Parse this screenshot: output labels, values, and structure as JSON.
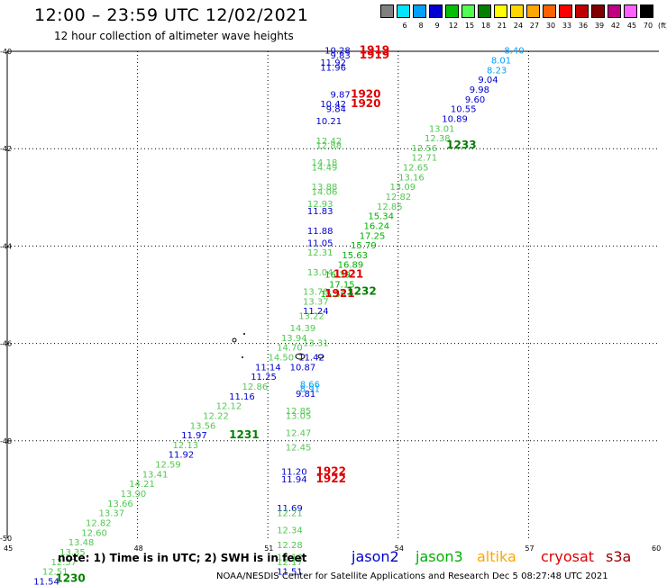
{
  "header": {
    "title": "12:00 – 23:59 UTC 12/02/2021",
    "subtitle": "12 hour collection of altimeter wave heights"
  },
  "colorbar": {
    "units": "(ft)",
    "bins": [
      {
        "label": "3",
        "color": "#808080"
      },
      {
        "label": "6",
        "color": "#00e5ff"
      },
      {
        "label": "8",
        "color": "#00a0ff"
      },
      {
        "label": "9",
        "color": "#0000d0"
      },
      {
        "label": "12",
        "color": "#00c000"
      },
      {
        "label": "15",
        "color": "#50ff50"
      },
      {
        "label": "18",
        "color": "#008000"
      },
      {
        "label": "21",
        "color": "#ffff00"
      },
      {
        "label": "24",
        "color": "#ffd700"
      },
      {
        "label": "27",
        "color": "#ffa500"
      },
      {
        "label": "30",
        "color": "#ff6000"
      },
      {
        "label": "33",
        "color": "#ff0000"
      },
      {
        "label": "36",
        "color": "#c00000"
      },
      {
        "label": "39",
        "color": "#800000"
      },
      {
        "label": "42",
        "color": "#c00080"
      },
      {
        "label": "45",
        "color": "#ff60ff"
      },
      {
        "label": "70",
        "color": "#000000"
      }
    ]
  },
  "axes": {
    "lat_labels": [
      "-40",
      "-42",
      "-44",
      "-46",
      "-48",
      "-50"
    ],
    "lon_labels": [
      "45",
      "48",
      "51",
      "54",
      "57",
      "60"
    ],
    "lon_range": [
      45,
      60
    ],
    "lat_range": [
      -50,
      -40
    ]
  },
  "observations": [
    {
      "text": "8.40",
      "lon": 56.9,
      "lat": -40.05,
      "c": "#00a0ff"
    },
    {
      "text": "8.01",
      "lon": 56.6,
      "lat": -40.25,
      "c": "#00a0ff"
    },
    {
      "text": "8.23",
      "lon": 56.5,
      "lat": -40.45,
      "c": "#00a0ff"
    },
    {
      "text": "9.04",
      "lon": 56.3,
      "lat": -40.65,
      "c": "#0000d0"
    },
    {
      "text": "9.98",
      "lon": 56.1,
      "lat": -40.85,
      "c": "#0000d0"
    },
    {
      "text": "9.60",
      "lon": 56.0,
      "lat": -41.05,
      "c": "#0000d0"
    },
    {
      "text": "10.55",
      "lon": 55.8,
      "lat": -41.25,
      "c": "#0000d0"
    },
    {
      "text": "10.89",
      "lon": 55.6,
      "lat": -41.45,
      "c": "#0000d0"
    },
    {
      "text": "13.01",
      "lon": 55.3,
      "lat": -41.65,
      "c": "#50c850"
    },
    {
      "text": "12.38",
      "lon": 55.2,
      "lat": -41.85,
      "c": "#50c850"
    },
    {
      "text": "12.56",
      "lon": 54.9,
      "lat": -42.05,
      "c": "#50c850"
    },
    {
      "text": "12.71",
      "lon": 54.9,
      "lat": -42.25,
      "c": "#50c850"
    },
    {
      "text": "12.65",
      "lon": 54.7,
      "lat": -42.45,
      "c": "#50c850"
    },
    {
      "text": "13.16",
      "lon": 54.6,
      "lat": -42.65,
      "c": "#50c850"
    },
    {
      "text": "13.09",
      "lon": 54.4,
      "lat": -42.85,
      "c": "#50c850"
    },
    {
      "text": "12.82",
      "lon": 54.3,
      "lat": -43.05,
      "c": "#50c850"
    },
    {
      "text": "12.85",
      "lon": 54.1,
      "lat": -43.25,
      "c": "#50c850"
    },
    {
      "text": "15.34",
      "lon": 53.9,
      "lat": -43.45,
      "c": "#00b000"
    },
    {
      "text": "16.24",
      "lon": 53.8,
      "lat": -43.65,
      "c": "#00b000"
    },
    {
      "text": "17.25",
      "lon": 53.7,
      "lat": -43.85,
      "c": "#00b000"
    },
    {
      "text": "15.79",
      "lon": 53.5,
      "lat": -44.05,
      "c": "#00b000"
    },
    {
      "text": "15.63",
      "lon": 53.3,
      "lat": -44.25,
      "c": "#00b000"
    },
    {
      "text": "16.89",
      "lon": 53.2,
      "lat": -44.45,
      "c": "#00b000"
    },
    {
      "text": "16.39",
      "lon": 52.9,
      "lat": -44.65,
      "c": "#00b000"
    },
    {
      "text": "17.15",
      "lon": 53.0,
      "lat": -44.85,
      "c": "#00b000"
    },
    {
      "text": "15.56",
      "lon": 52.8,
      "lat": -45.05,
      "c": "#00b000"
    },
    {
      "text": "13.04",
      "lon": 52.5,
      "lat": -44.6,
      "c": "#50c850"
    },
    {
      "text": "13.78",
      "lon": 52.4,
      "lat": -45.0,
      "c": "#50c850"
    },
    {
      "text": "13.37",
      "lon": 52.4,
      "lat": -45.2,
      "c": "#50c850"
    },
    {
      "text": "11.24",
      "lon": 52.4,
      "lat": -45.4,
      "c": "#0000d0"
    },
    {
      "text": "13.22",
      "lon": 52.3,
      "lat": -45.5,
      "c": "#50c850"
    },
    {
      "text": "14.39",
      "lon": 52.1,
      "lat": -45.75,
      "c": "#50c850"
    },
    {
      "text": "13.94",
      "lon": 51.9,
      "lat": -45.95,
      "c": "#50c850"
    },
    {
      "text": "13.31",
      "lon": 52.4,
      "lat": -46.05,
      "c": "#50c850"
    },
    {
      "text": "14.70",
      "lon": 51.8,
      "lat": -46.15,
      "c": "#50c850"
    },
    {
      "text": "14.50",
      "lon": 51.6,
      "lat": -46.35,
      "c": "#50c850"
    },
    {
      "text": "11.42",
      "lon": 52.3,
      "lat": -46.35,
      "c": "#0000d0"
    },
    {
      "text": "10.87",
      "lon": 52.1,
      "lat": -46.55,
      "c": "#0000d0"
    },
    {
      "text": "11.14",
      "lon": 51.3,
      "lat": -46.55,
      "c": "#0000d0"
    },
    {
      "text": "11.25",
      "lon": 51.2,
      "lat": -46.75,
      "c": "#0000d0"
    },
    {
      "text": "12.86",
      "lon": 51.0,
      "lat": -46.95,
      "c": "#50c850"
    },
    {
      "text": "11.16",
      "lon": 50.7,
      "lat": -47.15,
      "c": "#0000d0"
    },
    {
      "text": "12.12",
      "lon": 50.4,
      "lat": -47.35,
      "c": "#50c850"
    },
    {
      "text": "12.22",
      "lon": 50.1,
      "lat": -47.55,
      "c": "#50c850"
    },
    {
      "text": "13.56",
      "lon": 49.8,
      "lat": -47.75,
      "c": "#50c850"
    },
    {
      "text": "11.97",
      "lon": 49.6,
      "lat": -47.95,
      "c": "#0000d0"
    },
    {
      "text": "12.13",
      "lon": 49.4,
      "lat": -48.15,
      "c": "#50c850"
    },
    {
      "text": "11.92",
      "lon": 49.3,
      "lat": -48.35,
      "c": "#0000d0"
    },
    {
      "text": "12.59",
      "lon": 49.0,
      "lat": -48.55,
      "c": "#50c850"
    },
    {
      "text": "13.41",
      "lon": 48.7,
      "lat": -48.75,
      "c": "#50c850"
    },
    {
      "text": "14.21",
      "lon": 48.4,
      "lat": -48.95,
      "c": "#50c850"
    },
    {
      "text": "13.90",
      "lon": 48.2,
      "lat": -49.15,
      "c": "#50c850"
    },
    {
      "text": "13.66",
      "lon": 47.9,
      "lat": -49.35,
      "c": "#50c850"
    },
    {
      "text": "13.37",
      "lon": 47.7,
      "lat": -49.55,
      "c": "#50c850"
    },
    {
      "text": "12.82",
      "lon": 47.4,
      "lat": -49.75,
      "c": "#50c850"
    },
    {
      "text": "12.60",
      "lon": 47.3,
      "lat": -49.95,
      "c": "#50c850"
    },
    {
      "text": "13.48",
      "lon": 47.0,
      "lat": -50.15,
      "c": "#50c850"
    },
    {
      "text": "13.35",
      "lon": 46.8,
      "lat": -50.35,
      "c": "#50c850"
    },
    {
      "text": "12.57",
      "lon": 46.6,
      "lat": -50.55,
      "c": "#50c850"
    },
    {
      "text": "12.51",
      "lon": 46.4,
      "lat": -50.75,
      "c": "#50c850"
    },
    {
      "text": "11.54",
      "lon": 46.2,
      "lat": -50.95,
      "c": "#0000d0"
    },
    {
      "text": "11.12",
      "lon": 45.9,
      "lat": -51.15,
      "c": "#0000d0"
    },
    {
      "text": "10.48",
      "lon": 45.7,
      "lat": -51.35,
      "c": "#0000d0"
    },
    {
      "text": "10.28",
      "lon": 52.9,
      "lat": -40.05,
      "c": "#0000d0"
    },
    {
      "text": "9.83",
      "lon": 52.9,
      "lat": -40.15,
      "c": "#0000d0"
    },
    {
      "text": "11.92",
      "lon": 52.8,
      "lat": -40.3,
      "c": "#0000d0"
    },
    {
      "text": "11.96",
      "lon": 52.8,
      "lat": -40.4,
      "c": "#0000d0"
    },
    {
      "text": "9.87",
      "lon": 52.9,
      "lat": -40.95,
      "c": "#0000d0"
    },
    {
      "text": "10.42",
      "lon": 52.8,
      "lat": -41.15,
      "c": "#0000d0"
    },
    {
      "text": "9.84",
      "lon": 52.8,
      "lat": -41.25,
      "c": "#0000d0"
    },
    {
      "text": "10.21",
      "lon": 52.7,
      "lat": -41.5,
      "c": "#0000d0"
    },
    {
      "text": "12.42",
      "lon": 52.7,
      "lat": -41.9,
      "c": "#50c850"
    },
    {
      "text": "12.88",
      "lon": 52.7,
      "lat": -42.0,
      "c": "#50c850"
    },
    {
      "text": "14.18",
      "lon": 52.6,
      "lat": -42.35,
      "c": "#50c850"
    },
    {
      "text": "14.49",
      "lon": 52.6,
      "lat": -42.45,
      "c": "#50c850"
    },
    {
      "text": "13.88",
      "lon": 52.6,
      "lat": -42.85,
      "c": "#50c850"
    },
    {
      "text": "14.06",
      "lon": 52.6,
      "lat": -42.95,
      "c": "#50c850"
    },
    {
      "text": "12.93",
      "lon": 52.5,
      "lat": -43.2,
      "c": "#50c850"
    },
    {
      "text": "11.83",
      "lon": 52.5,
      "lat": -43.35,
      "c": "#0000d0"
    },
    {
      "text": "11.88",
      "lon": 52.5,
      "lat": -43.75,
      "c": "#0000d0"
    },
    {
      "text": "11.05",
      "lon": 52.5,
      "lat": -44.0,
      "c": "#0000d0"
    },
    {
      "text": "12.31",
      "lon": 52.5,
      "lat": -44.2,
      "c": "#50c850"
    },
    {
      "text": "8.66",
      "lon": 52.2,
      "lat": -46.9,
      "c": "#00a0ff"
    },
    {
      "text": "8.91",
      "lon": 52.2,
      "lat": -47.0,
      "c": "#00a0ff"
    },
    {
      "text": "9.81",
      "lon": 52.1,
      "lat": -47.1,
      "c": "#0000d0"
    },
    {
      "text": "12.85",
      "lon": 52.0,
      "lat": -47.45,
      "c": "#50c850"
    },
    {
      "text": "13.05",
      "lon": 52.0,
      "lat": -47.55,
      "c": "#50c850"
    },
    {
      "text": "12.47",
      "lon": 52.0,
      "lat": -47.9,
      "c": "#50c850"
    },
    {
      "text": "12.45",
      "lon": 52.0,
      "lat": -48.2,
      "c": "#50c850"
    },
    {
      "text": "11.20",
      "lon": 51.9,
      "lat": -48.7,
      "c": "#0000d0"
    },
    {
      "text": "11.94",
      "lon": 51.9,
      "lat": -48.85,
      "c": "#0000d0"
    },
    {
      "text": "11.69",
      "lon": 51.8,
      "lat": -49.45,
      "c": "#0000d0"
    },
    {
      "text": "12.21",
      "lon": 51.8,
      "lat": -49.55,
      "c": "#50c850"
    },
    {
      "text": "12.34",
      "lon": 51.8,
      "lat": -49.9,
      "c": "#50c850"
    },
    {
      "text": "12.28",
      "lon": 51.8,
      "lat": -50.2,
      "c": "#50c850"
    },
    {
      "text": "12.13",
      "lon": 51.8,
      "lat": -50.45,
      "c": "#50c850"
    },
    {
      "text": "12.17",
      "lon": 51.8,
      "lat": -50.55,
      "c": "#50c850"
    },
    {
      "text": "11.51",
      "lon": 51.8,
      "lat": -50.75,
      "c": "#0000d0"
    },
    {
      "text": "12.02",
      "lon": 51.7,
      "lat": -51.15,
      "c": "#50c850"
    }
  ],
  "times": [
    {
      "text": "1919",
      "lon": 53.8,
      "lat": -40.05,
      "c": "#e00000"
    },
    {
      "text": "1919",
      "lon": 53.8,
      "lat": -40.15,
      "c": "#e00000"
    },
    {
      "text": "1920",
      "lon": 53.6,
      "lat": -40.95,
      "c": "#e00000"
    },
    {
      "text": "1920",
      "lon": 53.6,
      "lat": -41.15,
      "c": "#e00000"
    },
    {
      "text": "1233",
      "lon": 55.8,
      "lat": -42.0,
      "c": "#008000"
    },
    {
      "text": "1921",
      "lon": 53.2,
      "lat": -44.65,
      "c": "#e00000"
    },
    {
      "text": "1921",
      "lon": 53.0,
      "lat": -45.05,
      "c": "#e00000"
    },
    {
      "text": "1232",
      "lon": 53.5,
      "lat": -45.0,
      "c": "#008000"
    },
    {
      "text": "1231",
      "lon": 50.8,
      "lat": -47.95,
      "c": "#008000"
    },
    {
      "text": "1922",
      "lon": 52.8,
      "lat": -48.7,
      "c": "#e00000"
    },
    {
      "text": "1922",
      "lon": 52.8,
      "lat": -48.85,
      "c": "#e00000"
    },
    {
      "text": "1230",
      "lon": 46.8,
      "lat": -50.9,
      "c": "#008000"
    },
    {
      "text": "1229",
      "lon": 46.6,
      "lat": -51.35,
      "c": "#008000"
    }
  ],
  "note": "note:  1) Time is in UTC;  2) SWH is in feet",
  "legend": [
    {
      "name": "jason2",
      "color": "#0000d0"
    },
    {
      "name": "jason3",
      "color": "#00b000"
    },
    {
      "name": "altika",
      "color": "#ffa500"
    },
    {
      "name": "cryosat",
      "color": "#e00000"
    },
    {
      "name": "s3a",
      "color": "#a00000"
    }
  ],
  "footer": "NOAA/NESDIS Center for Satellite Applications and Research     Dec  5 08:27:48 UTC 2021"
}
